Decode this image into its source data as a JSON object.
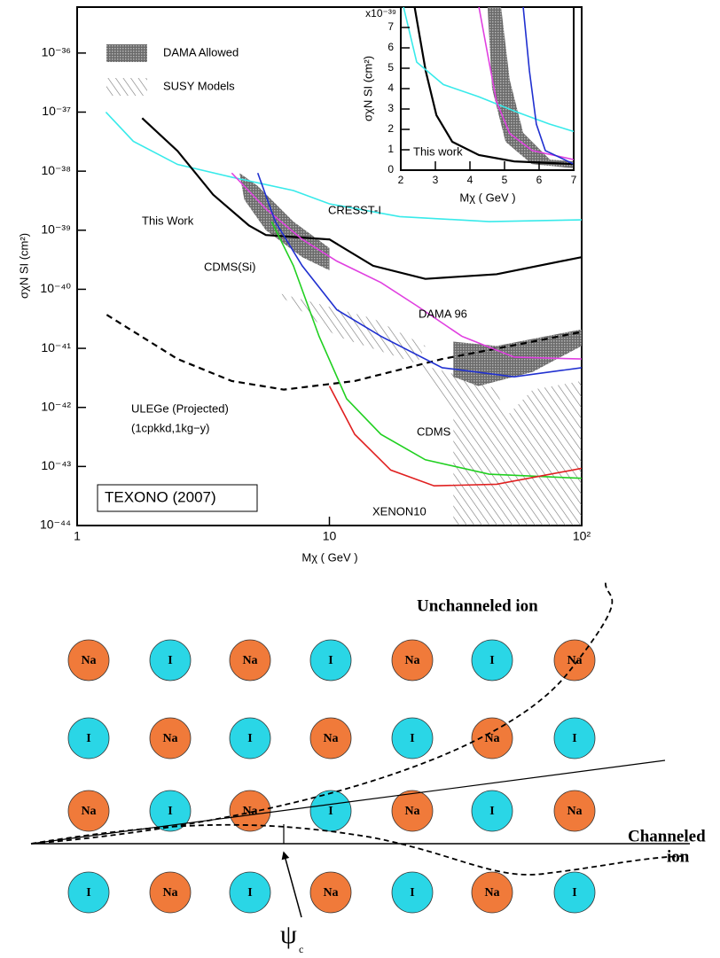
{
  "chart_data": [
    {
      "type": "line",
      "xlabel": "Mχ ( GeV )",
      "ylabel": "σχN SI (cm²)",
      "xscale": "log",
      "yscale": "log",
      "xlim": [
        1,
        100
      ],
      "ylim": [
        1e-44,
        6e-36
      ],
      "xticks": [
        1,
        10,
        {
          "value": 100,
          "label": "10²"
        }
      ],
      "yticks": [
        {
          "value": 1e-44,
          "label": "10⁻⁴⁴"
        },
        {
          "value": 1e-43,
          "label": "10⁻⁴³"
        },
        {
          "value": 1e-42,
          "label": "10⁻⁴²"
        },
        {
          "value": 1e-41,
          "label": "10⁻⁴¹"
        },
        {
          "value": 1e-40,
          "label": "10⁻⁴⁰"
        },
        {
          "value": 1e-39,
          "label": "10⁻³⁹"
        },
        {
          "value": 1e-38,
          "label": "10⁻³⁸"
        },
        {
          "value": 1e-37,
          "label": "10⁻³⁷"
        },
        {
          "value": 1e-36,
          "label": "10⁻³⁶"
        }
      ],
      "regions": [
        {
          "name": "DAMA Allowed",
          "color": "#8a8a8a",
          "x": [
            4.4,
            5.2,
            7.2,
            10,
            10,
            7.8,
            5.6,
            4.6
          ],
          "values": [
            9.3e-39,
            5.6e-39,
            1.4e-39,
            5e-40,
            2.1e-40,
            3.5e-40,
            1e-39,
            3.3e-39
          ]
        },
        {
          "name": "DAMA Allowed",
          "color": "#8a8a8a",
          "x": [
            31,
            46,
            100,
            100,
            64,
            39,
            31
          ],
          "values": [
            1.3e-41,
            1.1e-41,
            2.1e-41,
            1.1e-41,
            4e-42,
            2.3e-42,
            3.3e-42
          ]
        },
        {
          "name": "SUSY Models",
          "color": "#777777",
          "hatch": true,
          "x": [
            6.1,
            14.9,
            24,
            22.3,
            10.7
          ],
          "values": [
            8.9e-41,
            3.2e-41,
            1.1e-41,
            5.5e-42,
            1.6e-41
          ]
        },
        {
          "name": "SUSY Models",
          "color": "#777777",
          "hatch": true,
          "x": [
            22.3,
            31,
            31,
            100,
            100,
            64,
            50,
            46,
            39
          ],
          "values": [
            5.5e-42,
            6.9e-43,
            1e-44,
            1e-44,
            2.8e-42,
            2e-42,
            6.9e-43,
            2e-42,
            2.8e-42
          ]
        }
      ],
      "series": [
        {
          "name": "CRESST-I",
          "color": "#38eaea",
          "x": [
            1.3,
            1.67,
            2.5,
            4.1,
            7.2,
            10,
            19,
            43,
            100
          ],
          "values": [
            1e-37,
            3.2e-38,
            1.3e-38,
            7.9e-39,
            4.7e-39,
            2.8e-39,
            1.7e-39,
            1.4e-39,
            1.5e-39
          ]
        },
        {
          "name": "This Work",
          "color": "#000000",
          "x": [
            1.81,
            2.5,
            3.46,
            4.8,
            5.6,
            9.9,
            10,
            14.9,
            24,
            46,
            100
          ],
          "values": [
            7.9e-38,
            2.2e-38,
            4e-39,
            1.2e-39,
            8.3e-40,
            7e-40,
            7e-40,
            2.5e-40,
            1.5e-40,
            1.8e-40,
            3.5e-40
          ]
        },
        {
          "name": "ULEGe (Projected)",
          "color": "#000000",
          "dash": true,
          "x": [
            1.31,
            2.5,
            4.1,
            6.6,
            12.6,
            28,
            64,
            100
          ],
          "values": [
            3.7e-41,
            6.6e-42,
            2.8e-42,
            2e-42,
            2.8e-42,
            6.6e-42,
            1.3e-41,
            1.9e-41
          ]
        },
        {
          "name": "DAMA 96",
          "color": "#e040e0",
          "x": [
            4.1,
            5.6,
            7.8,
            10.7,
            16,
            22.3,
            33.5,
            54,
            100
          ],
          "values": [
            9.3e-39,
            2.3e-39,
            7e-40,
            3e-40,
            1.3e-40,
            5.2e-41,
            1.6e-41,
            7.1e-42,
            6.6e-42
          ]
        },
        {
          "name": "CDMS(Si)",
          "color": "#2030d0",
          "x": [
            5.2,
            6.1,
            7.8,
            10.7,
            16,
            28,
            54,
            100
          ],
          "values": [
            9.3e-39,
            1.4e-39,
            2.5e-40,
            4.5e-41,
            1.6e-41,
            4.7e-42,
            3.3e-42,
            4.7e-42
          ]
        },
        {
          "name": "CDMS",
          "color": "#20d020",
          "x": [
            5.9,
            7.2,
            9.1,
            11.7,
            16,
            24,
            43,
            100
          ],
          "values": [
            1.4e-39,
            2.5e-40,
            1.6e-41,
            1.4e-42,
            3.5e-43,
            1.3e-43,
            7.4e-44,
            6.3e-44
          ]
        },
        {
          "name": "XENON10",
          "color": "#e02020",
          "x": [
            10,
            12.6,
            17.5,
            26,
            46,
            100
          ],
          "values": [
            2.3e-42,
            3.5e-43,
            8.7e-44,
            4.7e-44,
            5e-44,
            9.3e-44
          ]
        }
      ],
      "annotations": [
        "(1cpkkd,1kg−y)",
        "TEXONO (2007)"
      ]
    },
    {
      "type": "line",
      "xlabel": "Mχ ( GeV )",
      "ylabel": "σχN SI (cm²)",
      "yscale_label": "x10⁻³⁹",
      "xlim": [
        2,
        7
      ],
      "ylim": [
        0,
        8
      ],
      "xticks": [
        2,
        3,
        4,
        5,
        6,
        7
      ],
      "yticks": [
        0,
        1,
        2,
        3,
        4,
        5,
        6,
        7
      ],
      "regions": [
        {
          "color": "#8a8a8a",
          "x": [
            4.51,
            4.9,
            5.15,
            5.54,
            6.31,
            7,
            7,
            5.79,
            5.03,
            4.64
          ],
          "values": [
            8,
            8,
            4.43,
            1.83,
            0.52,
            0.43,
            0.09,
            0.3,
            1.39,
            4
          ]
        }
      ],
      "series": [
        {
          "color": "#000000",
          "x": [
            2.4,
            2.72,
            3.03,
            3.49,
            4.26,
            5.28,
            7
          ],
          "values": [
            8,
            4.87,
            2.7,
            1.39,
            0.74,
            0.43,
            0.3
          ]
        },
        {
          "color": "#38eaea",
          "x": [
            2.08,
            2.46,
            3.23,
            4.26,
            5.28,
            6.3,
            7
          ],
          "values": [
            8,
            5.3,
            4.2,
            3.6,
            2.9,
            2.26,
            1.9
          ]
        },
        {
          "color": "#e040e0",
          "x": [
            4.26,
            4.51,
            4.77,
            5.15,
            5.8,
            7
          ],
          "values": [
            8,
            5.7,
            3.35,
            1.8,
            0.96,
            0.52
          ]
        },
        {
          "color": "#2030d0",
          "x": [
            5.54,
            5.72,
            5.92,
            6.18,
            7
          ],
          "values": [
            8,
            4.87,
            2.26,
            0.96,
            0.3
          ]
        }
      ],
      "annotations": [
        "This work"
      ]
    }
  ],
  "diagram": {
    "colors": {
      "Na": "#f07a3a",
      "I": "#2ad6e6"
    },
    "ions": [
      [
        "Na",
        "I",
        "Na",
        "I",
        "Na",
        "I",
        "Na"
      ],
      [
        "I",
        "Na",
        "I",
        "Na",
        "I",
        "Na",
        "I"
      ],
      [
        "Na",
        "I",
        "Na",
        "I",
        "Na",
        "I",
        "Na"
      ],
      [
        "I",
        "Na",
        "I",
        "Na",
        "I",
        "Na",
        "I"
      ]
    ],
    "unchanneled": "Unchanneled ion",
    "channeled": [
      "Channeled",
      "ion"
    ],
    "angle": "ψ",
    "angle_sub": "c"
  }
}
